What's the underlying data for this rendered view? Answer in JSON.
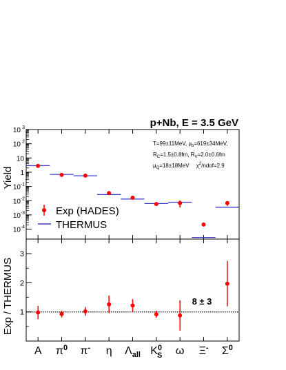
{
  "chart_data": [
    {
      "type": "scatter",
      "title": "p+Nb, E = 3.5 GeV",
      "ylabel": "Yield",
      "yscale": "log",
      "ylim": [
        2e-05,
        1000
      ],
      "y_ticks": [
        {
          "value": 1000,
          "exp": "3"
        },
        {
          "value": 100,
          "exp": "2"
        },
        {
          "value": 10,
          "exp": ""
        },
        {
          "value": 1,
          "exp": ""
        },
        {
          "value": 0.1,
          "exp": "-1"
        },
        {
          "value": 0.01,
          "exp": "-2"
        },
        {
          "value": 0.001,
          "exp": "-3"
        },
        {
          "value": 0.0001,
          "exp": "-4"
        }
      ],
      "y_tick_bases": {
        "1000": "10",
        "100": "10",
        "10": "10",
        "1": "1",
        "0.1": "10",
        "0.01": "10",
        "0.001": "10",
        "0.0001": "10"
      },
      "categories": [
        "A",
        "π0",
        "π-",
        "η",
        "Λall",
        "K0S",
        "ω",
        "Ξ-",
        "Σ0"
      ],
      "annotations": [
        "T=99±11MeV, μb=619±34MeV,",
        "RC=1.5±0.8fm, RV=2.0±0.6fm",
        "μQ=18±18MeV   χ²/ndof=2.9"
      ],
      "legend": {
        "position": "bottom-left",
        "entries": [
          "Exp (HADES)",
          "THERMUS"
        ]
      },
      "series": [
        {
          "name": "Exp (HADES)",
          "marker": "circle",
          "color": "#ff0000",
          "values": [
            2.8,
            0.65,
            0.58,
            0.034,
            0.016,
            0.0058,
            0.0068,
            0.00021,
            0.0068
          ],
          "err_low": [
            0.5,
            0.08,
            0.08,
            0.005,
            0.003,
            0.0009,
            0.0035,
            4e-05,
            0.0025
          ],
          "err_high": [
            0.5,
            0.08,
            0.08,
            0.005,
            0.003,
            0.0009,
            0.0035,
            4e-05,
            0.0025
          ]
        },
        {
          "name": "THERMUS",
          "marker": "hline",
          "color": "#3a3acc",
          "values": [
            2.9,
            0.7,
            0.56,
            0.027,
            0.013,
            0.0063,
            0.0078,
            2.6e-05,
            0.0035
          ]
        }
      ]
    },
    {
      "type": "scatter",
      "ylabel": "Exp / THERMUS",
      "ylim": [
        0,
        3.5
      ],
      "y_ticks": [
        1,
        2,
        3
      ],
      "reference_line": 1,
      "categories": [
        "A",
        "π0",
        "π-",
        "η",
        "Λall",
        "K0S",
        "ω",
        "Ξ-",
        "Σ0"
      ],
      "annotation": "8 ± 3",
      "series": [
        {
          "name": "",
          "color": "#ff0000",
          "values": [
            0.98,
            0.93,
            1.02,
            1.26,
            1.22,
            0.92,
            0.88,
            null,
            1.97
          ],
          "err": [
            0.23,
            0.12,
            0.15,
            0.3,
            0.22,
            0.12,
            0.52,
            null,
            0.78
          ]
        }
      ]
    }
  ],
  "x_labels": [
    {
      "main": "A",
      "sup": "",
      "sub": ""
    },
    {
      "main": "π",
      "sup": "0",
      "sub": ""
    },
    {
      "main": "π",
      "sup": "-",
      "sub": ""
    },
    {
      "main": "η",
      "sup": "",
      "sub": ""
    },
    {
      "main": "Λ",
      "sup": "",
      "sub": "all"
    },
    {
      "main": "K",
      "sup": "0",
      "sub": "S"
    },
    {
      "main": "ω",
      "sup": "",
      "sub": ""
    },
    {
      "main": "Ξ",
      "sup": "-",
      "sub": ""
    },
    {
      "main": "Σ",
      "sup": "0",
      "sub": ""
    }
  ],
  "annotation_parts": {
    "line1": {
      "t": "T=99±11MeV, μ",
      "tsub": "b",
      "rest": "=619±34MeV,"
    },
    "line2": {
      "r1": "R",
      "r1sub": "C",
      "r1rest": "=1.5±0.8fm, R",
      "r2sub": "V",
      "r2rest": "=2.0±0.6fm"
    },
    "line3": {
      "mu": "μ",
      "musub": "Q",
      "murest": "=18±18MeV",
      "chi": "χ",
      "chisup": "2",
      "chirest": "/ndof=2.9"
    }
  },
  "colors": {
    "data": "#ff0000",
    "model": "#3a3acc",
    "axis": "#000000"
  }
}
